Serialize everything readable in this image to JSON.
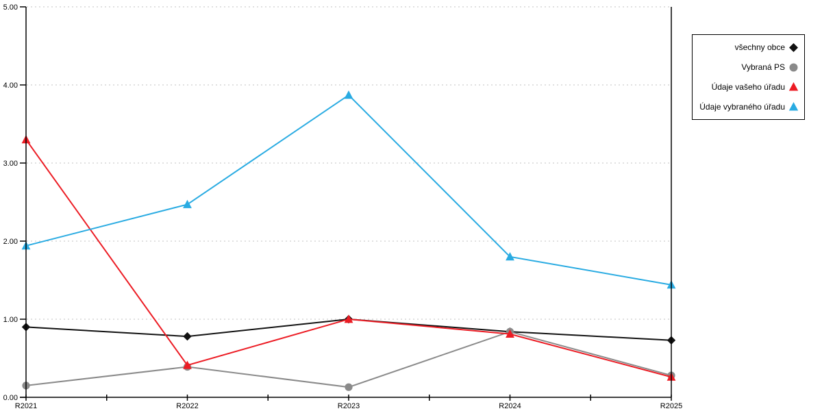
{
  "chart_data": {
    "type": "line",
    "title": "",
    "xlabel": "",
    "ylabel": "",
    "categories": [
      "R2021",
      "R2022",
      "R2023",
      "R2024",
      "R2025"
    ],
    "y_ticks": [
      "0.00",
      "1.00",
      "2.00",
      "3.00",
      "4.00",
      "5.00"
    ],
    "ylim": [
      0,
      5
    ],
    "grid": "horizontal-dotted",
    "legend_position": "outside-right",
    "series": [
      {
        "name": "všechny obce",
        "marker": "diamond",
        "color": "#111111",
        "values": [
          0.9,
          0.78,
          1.0,
          0.84,
          0.73
        ]
      },
      {
        "name": "Vybraná PS",
        "marker": "circle",
        "color": "#8a8a8a",
        "values": [
          0.15,
          0.39,
          0.13,
          0.84,
          0.28
        ]
      },
      {
        "name": "Údaje vašeho úřadu",
        "marker": "triangle",
        "color": "#ec1c24",
        "values": [
          3.3,
          0.41,
          1.0,
          0.81,
          0.26
        ]
      },
      {
        "name": "Údaje vybraného úřadu",
        "marker": "triangle",
        "color": "#29abe2",
        "values": [
          1.94,
          2.47,
          3.87,
          1.8,
          1.44
        ]
      }
    ],
    "colors": {
      "axis": "#000000",
      "gridline": "#c0c0c0",
      "background": "#ffffff"
    }
  }
}
